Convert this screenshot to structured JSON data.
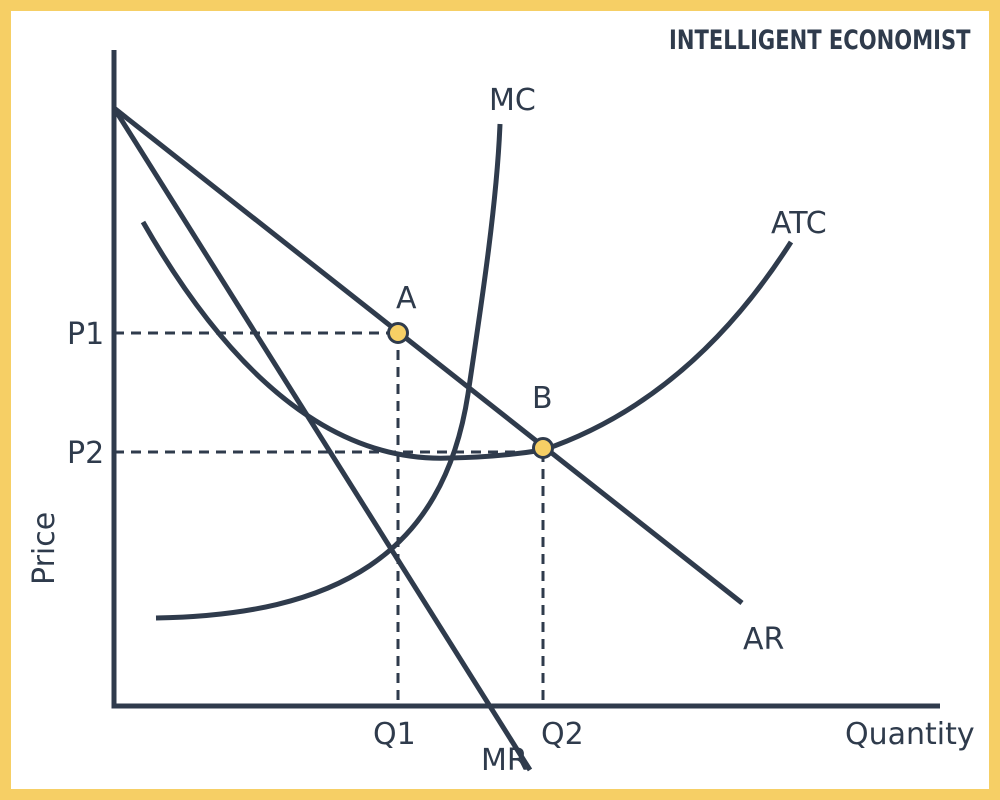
{
  "brand": "INTELLIGENT ECONOMIST",
  "axes": {
    "y_label": "Price",
    "x_label": "Quantity"
  },
  "ticks": {
    "y": [
      {
        "label": "P1"
      },
      {
        "label": "P2"
      }
    ],
    "x": [
      {
        "label": "Q1"
      },
      {
        "label": "Q2"
      }
    ]
  },
  "curves": {
    "mc": "MC",
    "atc": "ATC",
    "ar": "AR",
    "mr": "MR"
  },
  "points": {
    "a": "A",
    "b": "B"
  },
  "colors": {
    "ink": "#2f3b4c",
    "accent": "#f6cf65",
    "background": "#ffffff"
  }
}
